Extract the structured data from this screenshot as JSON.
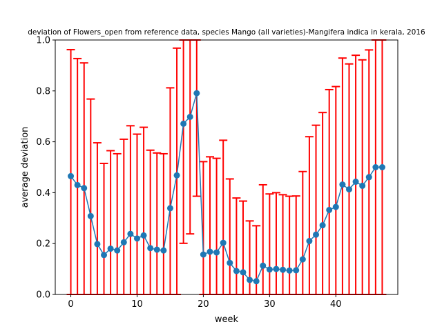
{
  "chart_data": {
    "type": "line",
    "title": "deviation of Flowers_open from reference data, species Mango (all varieties)-Mangifera indica in kerala, 2016",
    "xlabel": "week",
    "ylabel": "average deviation",
    "xlim": [
      -2.35,
      49.35
    ],
    "ylim": [
      0,
      1
    ],
    "xticks": [
      0,
      10,
      20,
      30,
      40
    ],
    "xtick_labels": [
      "0",
      "10",
      "20",
      "30",
      "40"
    ],
    "yticks": [
      0.0,
      0.2,
      0.4,
      0.6,
      0.8,
      1.0
    ],
    "ytick_labels": [
      "0.0",
      "0.2",
      "0.4",
      "0.6",
      "0.8",
      "1.0"
    ],
    "grid": false,
    "series": [
      {
        "line_color": "#1f77b4",
        "errorbar_color": "#ff0000",
        "x": [
          0,
          1,
          2,
          3,
          4,
          5,
          6,
          7,
          8,
          9,
          10,
          11,
          12,
          13,
          14,
          15,
          16,
          17,
          18,
          19,
          20,
          21,
          22,
          23,
          24,
          25,
          26,
          27,
          28,
          29,
          30,
          31,
          32,
          33,
          34,
          35,
          36,
          37,
          38,
          39,
          40,
          41,
          42,
          43,
          44,
          45,
          46,
          47
        ],
        "y": [
          0.465,
          0.43,
          0.418,
          0.308,
          0.198,
          0.155,
          0.18,
          0.173,
          0.205,
          0.238,
          0.22,
          0.232,
          0.182,
          0.176,
          0.173,
          0.339,
          0.468,
          0.671,
          0.698,
          0.791,
          0.157,
          0.168,
          0.165,
          0.203,
          0.124,
          0.092,
          0.087,
          0.057,
          0.052,
          0.113,
          0.098,
          0.1,
          0.097,
          0.094,
          0.095,
          0.138,
          0.21,
          0.235,
          0.272,
          0.332,
          0.344,
          0.432,
          0.413,
          0.443,
          0.427,
          0.461,
          0.5,
          0.5
        ],
        "err": [
          0.497,
          0.497,
          0.492,
          0.46,
          0.398,
          0.36,
          0.385,
          0.38,
          0.405,
          0.425,
          0.41,
          0.425,
          0.385,
          0.38,
          0.38,
          0.473,
          0.5,
          0.47,
          0.46,
          0.405,
          0.365,
          0.373,
          0.37,
          0.403,
          0.33,
          0.287,
          0.28,
          0.232,
          0.218,
          0.318,
          0.297,
          0.3,
          0.295,
          0.292,
          0.292,
          0.345,
          0.41,
          0.43,
          0.443,
          0.473,
          0.473,
          0.497,
          0.493,
          0.497,
          0.495,
          0.5,
          0.5,
          0.5
        ]
      }
    ]
  }
}
